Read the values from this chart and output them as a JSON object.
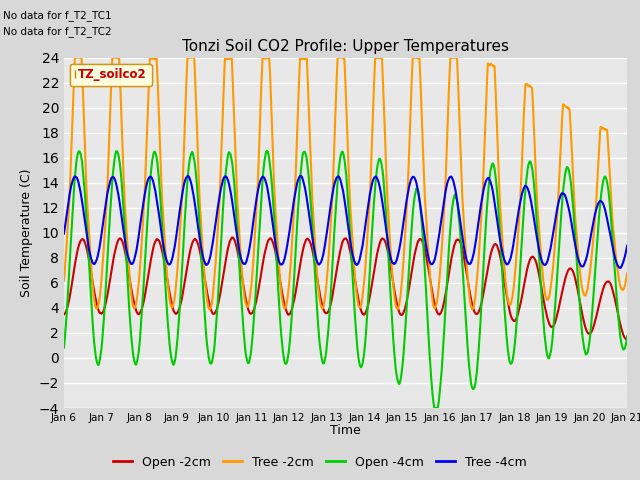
{
  "title": "Tonzi Soil CO2 Profile: Upper Temperatures",
  "ylabel": "Soil Temperature (C)",
  "xlabel": "Time",
  "annotation1": "No data for f_T2_TC1",
  "annotation2": "No data for f_T2_TC2",
  "legend_label": "TZ_soilco2",
  "series_labels": [
    "Open -2cm",
    "Tree -2cm",
    "Open -4cm",
    "Tree -4cm"
  ],
  "series_colors": [
    "#cc0000",
    "#ff9900",
    "#00cc00",
    "#0000ee"
  ],
  "xticklabels": [
    "Jan 6",
    "Jan 7",
    "Jan 8",
    "Jan 9",
    "Jan 10",
    "Jan 11",
    "Jan 12",
    "Jan 13",
    "Jan 14",
    "Jan 15",
    "Jan 16",
    "Jan 17",
    "Jan 18",
    "Jan 19",
    "Jan 20",
    "Jan 21"
  ],
  "ylim": [
    -4,
    24
  ],
  "yticks": [
    -4,
    -2,
    0,
    2,
    4,
    6,
    8,
    10,
    12,
    14,
    16,
    18,
    20,
    22,
    24
  ],
  "bg_color": "#d8d8d8",
  "plot_bg": "#e8e8e8",
  "grid_color": "#ffffff",
  "figwidth": 6.4,
  "figheight": 4.8,
  "dpi": 100
}
